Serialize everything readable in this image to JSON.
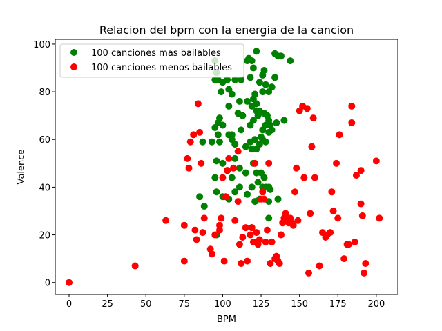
{
  "chart_data": {
    "type": "scatter",
    "title": "Relacion del bpm con la energia de la cancion",
    "xlabel": "BPM",
    "ylabel": "Valence",
    "xlim": [
      -9,
      214
    ],
    "ylim": [
      -5,
      102
    ],
    "xticks": [
      0,
      25,
      50,
      75,
      100,
      125,
      150,
      175,
      200
    ],
    "yticks": [
      0,
      20,
      40,
      60,
      80,
      100
    ],
    "grid": false,
    "legend_position": "top-left",
    "series": [
      {
        "name": "100 canciones mas bailables",
        "color": "#008000",
        "points": [
          [
            95,
            93
          ],
          [
            96,
            88
          ],
          [
            97,
            85
          ],
          [
            100,
            84
          ],
          [
            103,
            85
          ],
          [
            108,
            85
          ],
          [
            112,
            85
          ],
          [
            116,
            93
          ],
          [
            117,
            94
          ],
          [
            118,
            86
          ],
          [
            119,
            93
          ],
          [
            120,
            90
          ],
          [
            122,
            97
          ],
          [
            124,
            84
          ],
          [
            126,
            87
          ],
          [
            127,
            89
          ],
          [
            134,
            96
          ],
          [
            136,
            95
          ],
          [
            138,
            95
          ],
          [
            144,
            93
          ],
          [
            95,
            85
          ],
          [
            99,
            80
          ],
          [
            104,
            81
          ],
          [
            106,
            79
          ],
          [
            111,
            76
          ],
          [
            116,
            76
          ],
          [
            119,
            74
          ],
          [
            120,
            77
          ],
          [
            121,
            79
          ],
          [
            122,
            72
          ],
          [
            124,
            72
          ],
          [
            126,
            80
          ],
          [
            128,
            83
          ],
          [
            130,
            80
          ],
          [
            132,
            82
          ],
          [
            134,
            86
          ],
          [
            98,
            69
          ],
          [
            97,
            67
          ],
          [
            100,
            66
          ],
          [
            104,
            74
          ],
          [
            106,
            62
          ],
          [
            110,
            71
          ],
          [
            112,
            64
          ],
          [
            113,
            70
          ],
          [
            118,
            66
          ],
          [
            120,
            68
          ],
          [
            122,
            75
          ],
          [
            123,
            70
          ],
          [
            126,
            64
          ],
          [
            127,
            71
          ],
          [
            128,
            66
          ],
          [
            129,
            70
          ],
          [
            130,
            68
          ],
          [
            132,
            64
          ],
          [
            135,
            67
          ],
          [
            140,
            68
          ],
          [
            87,
            59
          ],
          [
            93,
            59
          ],
          [
            95,
            65
          ],
          [
            97,
            62
          ],
          [
            98,
            59
          ],
          [
            104,
            62
          ],
          [
            106,
            60
          ],
          [
            108,
            58
          ],
          [
            115,
            57
          ],
          [
            118,
            59
          ],
          [
            121,
            60
          ],
          [
            122,
            56
          ],
          [
            124,
            58
          ],
          [
            125,
            61
          ],
          [
            126,
            60
          ],
          [
            128,
            59
          ],
          [
            130,
            63
          ],
          [
            131,
            66
          ],
          [
            96,
            51
          ],
          [
            100,
            50
          ],
          [
            103,
            47
          ],
          [
            106,
            44
          ],
          [
            108,
            52
          ],
          [
            111,
            48
          ],
          [
            115,
            46
          ],
          [
            119,
            56
          ],
          [
            120,
            50
          ],
          [
            122,
            46
          ],
          [
            123,
            42
          ],
          [
            125,
            46
          ],
          [
            127,
            44
          ],
          [
            128,
            40
          ],
          [
            130,
            40
          ],
          [
            85,
            36
          ],
          [
            88,
            32
          ],
          [
            95,
            44
          ],
          [
            96,
            38
          ],
          [
            100,
            36
          ],
          [
            104,
            35
          ],
          [
            108,
            38
          ],
          [
            111,
            40
          ],
          [
            116,
            37
          ],
          [
            119,
            40
          ],
          [
            121,
            34
          ],
          [
            124,
            35
          ],
          [
            126,
            40
          ],
          [
            130,
            34
          ],
          [
            131,
            39
          ],
          [
            136,
            35
          ],
          [
            96,
            20
          ],
          [
            119,
            23
          ],
          [
            130,
            27
          ],
          [
            136,
            35
          ]
        ]
      },
      {
        "name": "100 canciones menos bailables",
        "color": "#ff0000",
        "points": [
          [
            0,
            0
          ],
          [
            43,
            7
          ],
          [
            63,
            26
          ],
          [
            75,
            9
          ],
          [
            75,
            24
          ],
          [
            77,
            52
          ],
          [
            78,
            48
          ],
          [
            79,
            59
          ],
          [
            81,
            62
          ],
          [
            82,
            22
          ],
          [
            83,
            18
          ],
          [
            84,
            75
          ],
          [
            85,
            63
          ],
          [
            86,
            50
          ],
          [
            87,
            21
          ],
          [
            88,
            27
          ],
          [
            92,
            14
          ],
          [
            93,
            12
          ],
          [
            95,
            20
          ],
          [
            98,
            22
          ],
          [
            98,
            24
          ],
          [
            99,
            27
          ],
          [
            100,
            44
          ],
          [
            101,
            9
          ],
          [
            102,
            36
          ],
          [
            103,
            47
          ],
          [
            104,
            52
          ],
          [
            107,
            48
          ],
          [
            108,
            26
          ],
          [
            110,
            34
          ],
          [
            110,
            55
          ],
          [
            111,
            16
          ],
          [
            112,
            8
          ],
          [
            113,
            19
          ],
          [
            115,
            23
          ],
          [
            116,
            9
          ],
          [
            118,
            20
          ],
          [
            119,
            23
          ],
          [
            120,
            17
          ],
          [
            121,
            50
          ],
          [
            122,
            21
          ],
          [
            123,
            16
          ],
          [
            124,
            18
          ],
          [
            125,
            35
          ],
          [
            126,
            38
          ],
          [
            127,
            35
          ],
          [
            128,
            17
          ],
          [
            129,
            22
          ],
          [
            130,
            50
          ],
          [
            131,
            8
          ],
          [
            132,
            17
          ],
          [
            134,
            10
          ],
          [
            135,
            11
          ],
          [
            136,
            9
          ],
          [
            137,
            8
          ],
          [
            138,
            20
          ],
          [
            139,
            25
          ],
          [
            140,
            27
          ],
          [
            141,
            29
          ],
          [
            142,
            26
          ],
          [
            143,
            25
          ],
          [
            144,
            27
          ],
          [
            145,
            25
          ],
          [
            146,
            24
          ],
          [
            147,
            38
          ],
          [
            148,
            48
          ],
          [
            149,
            26
          ],
          [
            150,
            72
          ],
          [
            152,
            74
          ],
          [
            153,
            44
          ],
          [
            155,
            73
          ],
          [
            156,
            4
          ],
          [
            157,
            29
          ],
          [
            158,
            57
          ],
          [
            159,
            69
          ],
          [
            160,
            44
          ],
          [
            163,
            7
          ],
          [
            165,
            21
          ],
          [
            167,
            19
          ],
          [
            168,
            20
          ],
          [
            170,
            21
          ],
          [
            171,
            38
          ],
          [
            172,
            30
          ],
          [
            174,
            50
          ],
          [
            175,
            27
          ],
          [
            176,
            62
          ],
          [
            179,
            10
          ],
          [
            181,
            16
          ],
          [
            182,
            16
          ],
          [
            184,
            74
          ],
          [
            184,
            67
          ],
          [
            186,
            17
          ],
          [
            187,
            45
          ],
          [
            190,
            47
          ],
          [
            190,
            33
          ],
          [
            191,
            28
          ],
          [
            192,
            4
          ],
          [
            193,
            8
          ],
          [
            200,
            51
          ],
          [
            202,
            27
          ]
        ]
      }
    ]
  }
}
